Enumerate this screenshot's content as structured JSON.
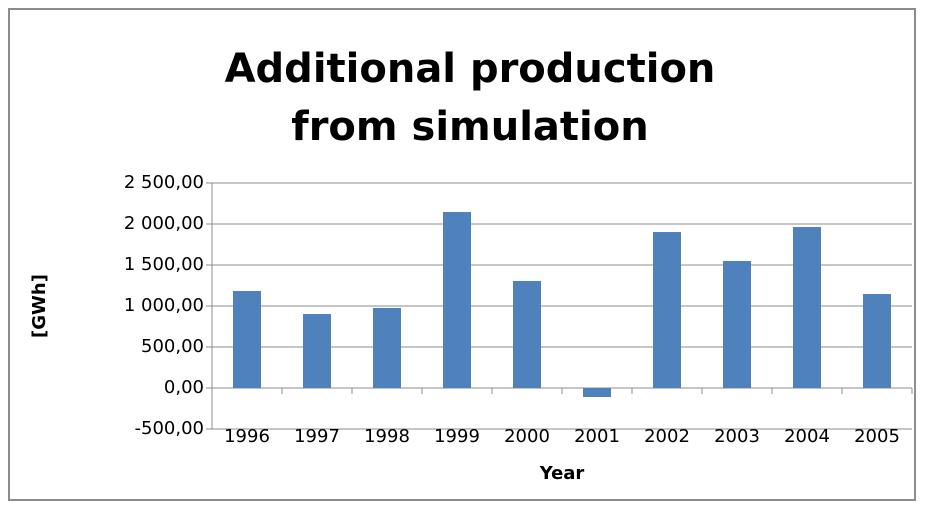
{
  "chart_data": {
    "type": "bar",
    "title": "Additional production from simulation",
    "x_label": "Year",
    "y_label": "[GWh]",
    "categories": [
      "1996",
      "1997",
      "1998",
      "1999",
      "2000",
      "2001",
      "2002",
      "2003",
      "2004",
      "2005"
    ],
    "values": [
      1183,
      902,
      976,
      2146,
      1305,
      -110,
      1902,
      1549,
      1963,
      1146
    ],
    "color": "#4f81bd",
    "ylim": [
      -500,
      2500
    ],
    "yticks": [
      {
        "value": -500,
        "label": "-500,00"
      },
      {
        "value": 0,
        "label": "0,00"
      },
      {
        "value": 500,
        "label": "500,00"
      },
      {
        "value": 1000,
        "label": "1 000,00"
      },
      {
        "value": 1500,
        "label": "1 500,00"
      },
      {
        "value": 2000,
        "label": "2 000,00"
      },
      {
        "value": 2500,
        "label": "2 500,00"
      }
    ],
    "grid": true
  }
}
